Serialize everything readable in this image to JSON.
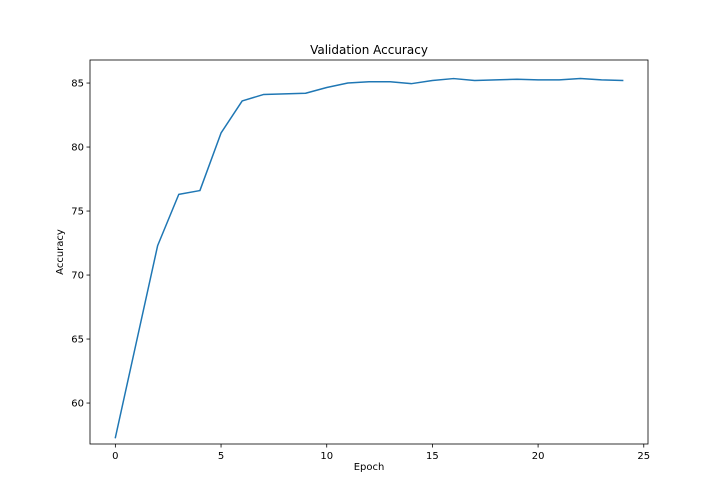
{
  "chart_data": {
    "type": "line",
    "title": "Validation Accuracy",
    "xlabel": "Epoch",
    "ylabel": "Accuracy",
    "xlim": [
      -1.2,
      25.2
    ],
    "ylim": [
      56.8,
      86.8
    ],
    "xticks": [
      0,
      5,
      10,
      15,
      20,
      25
    ],
    "yticks": [
      60,
      65,
      70,
      75,
      80,
      85
    ],
    "grid": false,
    "series": [
      {
        "color": "#1f77b4",
        "x": [
          0,
          1,
          2,
          3,
          4,
          5,
          6,
          7,
          8,
          9,
          10,
          11,
          12,
          13,
          14,
          15,
          16,
          17,
          18,
          19,
          20,
          21,
          22,
          23,
          24
        ],
        "y": [
          57.3,
          64.8,
          72.3,
          76.3,
          76.6,
          81.1,
          83.6,
          84.1,
          84.15,
          84.2,
          84.65,
          85.0,
          85.1,
          85.1,
          84.95,
          85.2,
          85.35,
          85.2,
          85.25,
          85.3,
          85.25,
          85.25,
          85.35,
          85.25,
          85.2
        ]
      }
    ]
  }
}
